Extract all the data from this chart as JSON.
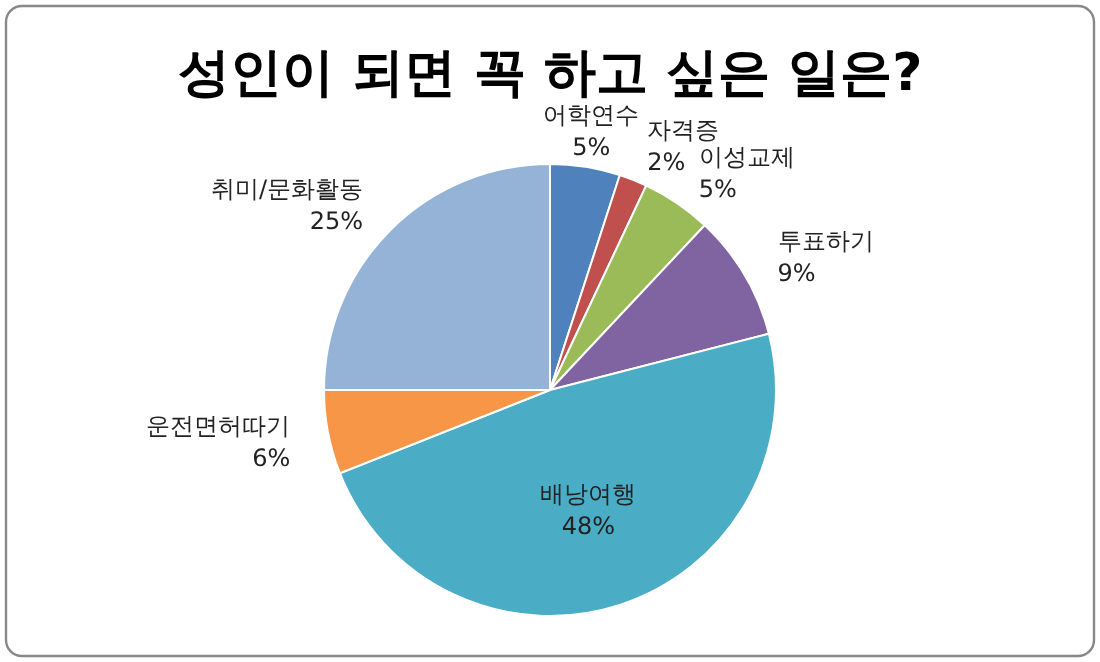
{
  "chart_data": {
    "type": "pie",
    "title": "성인이 되면 꼭 하고 싶은 일은?",
    "categories": [
      "어학연수",
      "자격증",
      "이성교제",
      "투표하기",
      "배낭여행",
      "운전면허따기",
      "취미/문화활동"
    ],
    "values": [
      5,
      2,
      5,
      9,
      48,
      6,
      25
    ],
    "value_labels": [
      "5%",
      "2%",
      "5%",
      "9%",
      "48%",
      "6%",
      "25%"
    ],
    "colors": [
      "#4f81bd",
      "#c0504d",
      "#9bbb59",
      "#8064a2",
      "#4bacc6",
      "#f79646",
      "#95b3d7"
    ],
    "legend": false
  }
}
